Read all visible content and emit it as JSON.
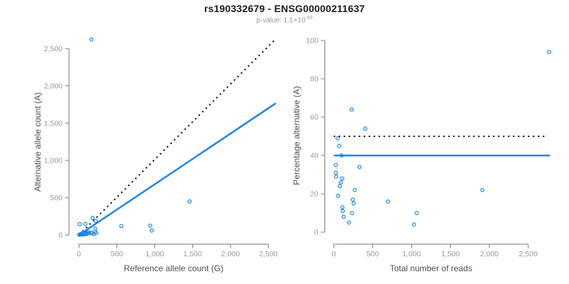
{
  "figure": {
    "title": "rs190332679 - ENSG00000211637",
    "subtitle_prefix": "p-value: 1.1×10",
    "subtitle_exponent": "-93"
  },
  "colors": {
    "point": "#1E87E5",
    "fit_line": "#1E87E5",
    "reference_line": "#000000",
    "axis": "#8E8E8E",
    "tick_label": "#979797",
    "axis_title": "#4D4D4D"
  },
  "chart_data": [
    {
      "type": "scatter",
      "name": "allele-count-scatter",
      "xlabel": "Reference allele count (G)",
      "ylabel": "Alternative allele count (A)",
      "xlim": [
        0,
        2500
      ],
      "ylim": [
        0,
        2500
      ],
      "grid": false,
      "legend": "none",
      "xticks": {
        "values": [
          0,
          500,
          1000,
          1500,
          2000,
          2500
        ],
        "labels": [
          "0",
          "500",
          "1,000",
          "1,500",
          "2,000",
          "2,500"
        ]
      },
      "yticks": {
        "values": [
          0,
          500,
          1000,
          1500,
          2000,
          2500
        ],
        "labels": [
          "0",
          "500",
          "1,000",
          "1,500",
          "2,000",
          "2,500"
        ]
      },
      "points": [
        [
          5,
          3
        ],
        [
          10,
          8
        ],
        [
          15,
          5
        ],
        [
          20,
          12
        ],
        [
          25,
          7
        ],
        [
          30,
          15
        ],
        [
          35,
          10
        ],
        [
          40,
          18
        ],
        [
          45,
          12
        ],
        [
          50,
          25
        ],
        [
          55,
          8
        ],
        [
          60,
          20
        ],
        [
          65,
          30
        ],
        [
          70,
          15
        ],
        [
          80,
          22
        ],
        [
          90,
          10
        ],
        [
          100,
          28
        ],
        [
          110,
          18
        ],
        [
          120,
          40
        ],
        [
          135,
          25
        ],
        [
          160,
          30
        ],
        [
          172,
          26
        ],
        [
          195,
          12
        ],
        [
          215,
          85
        ],
        [
          216,
          42
        ],
        [
          230,
          25
        ],
        [
          10,
          145
        ],
        [
          85,
          148
        ],
        [
          180,
          230
        ],
        [
          220,
          190
        ],
        [
          560,
          120
        ],
        [
          940,
          125
        ],
        [
          960,
          60
        ],
        [
          1460,
          450
        ],
        [
          165,
          2620
        ]
      ],
      "lines": [
        {
          "name": "identity-line",
          "style": "dotted",
          "color": "#000000",
          "width": 2,
          "from": [
            0,
            0
          ],
          "to": [
            2580,
            2610
          ]
        },
        {
          "name": "fit-line",
          "style": "solid",
          "color": "#1E87E5",
          "width": 2.5,
          "from": [
            0,
            0
          ],
          "to": [
            2600,
            1767
          ]
        }
      ]
    },
    {
      "type": "scatter",
      "name": "percentage-scatter",
      "xlabel": "Total number of reads",
      "ylabel": "Percentage alternative (A)",
      "xlim": [
        0,
        2500
      ],
      "ylim": [
        0,
        100
      ],
      "grid": false,
      "legend": "none",
      "xticks": {
        "values": [
          0,
          500,
          1000,
          1500,
          2000,
          2500
        ],
        "labels": [
          "0",
          "500",
          "1,000",
          "1,500",
          "2,000",
          "2,500"
        ]
      },
      "yticks": {
        "values": [
          0,
          20,
          40,
          60,
          80,
          100
        ],
        "labels": [
          "0",
          "20",
          "40",
          "60",
          "80",
          "100"
        ]
      },
      "points": [
        [
          2770,
          94
        ],
        [
          230,
          64
        ],
        [
          405,
          54
        ],
        [
          50,
          49
        ],
        [
          70,
          45
        ],
        [
          100,
          40
        ],
        [
          25,
          35
        ],
        [
          330,
          34
        ],
        [
          27,
          31
        ],
        [
          30,
          29
        ],
        [
          110,
          28
        ],
        [
          90,
          26
        ],
        [
          77,
          24
        ],
        [
          270,
          22
        ],
        [
          55,
          19
        ],
        [
          1910,
          22
        ],
        [
          245,
          17
        ],
        [
          255,
          15
        ],
        [
          695,
          16
        ],
        [
          110,
          13
        ],
        [
          115,
          11
        ],
        [
          128,
          8
        ],
        [
          235,
          10
        ],
        [
          1065,
          10
        ],
        [
          195,
          5
        ],
        [
          1030,
          4
        ]
      ],
      "lines": [
        {
          "name": "fifty-percent-line",
          "style": "dotted",
          "color": "#000000",
          "width": 2,
          "from": [
            0,
            50
          ],
          "to": [
            2730,
            50
          ]
        },
        {
          "name": "mean-percentage-line",
          "style": "solid",
          "color": "#1E87E5",
          "width": 2.5,
          "from": [
            0,
            40
          ],
          "to": [
            2780,
            40
          ]
        }
      ]
    }
  ]
}
